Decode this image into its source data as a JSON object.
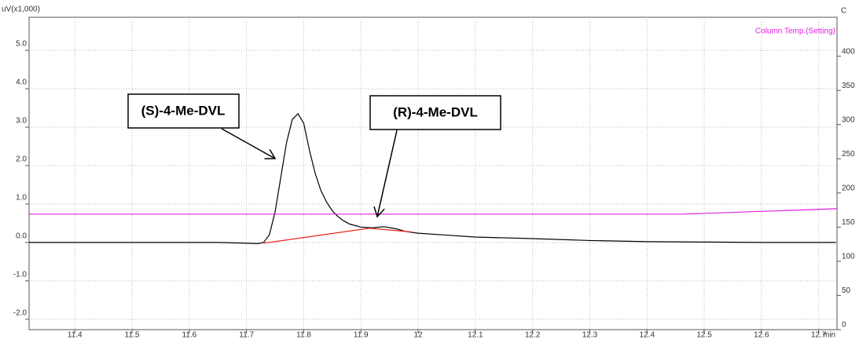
{
  "chart_data": {
    "type": "line",
    "y_label": "uV(x1,000)",
    "y2_label": "C",
    "x_label": "min",
    "annotations": [
      "(S)-4-Me-DVL",
      "(R)-4-Me-DVL"
    ],
    "xlim": [
      11.32,
      12.732
    ],
    "xticks": [
      11.4,
      11.5,
      11.6,
      11.7,
      11.8,
      11.9,
      12.0,
      12.1,
      12.2,
      12.3,
      12.4,
      12.5,
      12.6,
      12.7
    ],
    "ylim": [
      -2.27,
      5.86
    ],
    "yticks": [
      {
        "value": -2,
        "label": "-2.0"
      },
      {
        "value": -1,
        "label": "-1.0"
      },
      {
        "value": 0,
        "label": "0.0"
      },
      {
        "value": 1,
        "label": "1.0"
      },
      {
        "value": 2,
        "label": "2.0"
      },
      {
        "value": 3,
        "label": "3.0"
      },
      {
        "value": 4,
        "label": "4.0"
      },
      {
        "value": 5,
        "label": "5.0"
      }
    ],
    "y2lim": [
      0,
      457
    ],
    "y2ticks": [
      0,
      50,
      100,
      150,
      200,
      250,
      300,
      350,
      400
    ],
    "grid": true,
    "legend": "top-right",
    "series": [
      {
        "color": "#000000",
        "x": [
          11.32,
          11.4,
          11.5,
          11.6,
          11.65,
          11.7,
          11.72,
          11.73,
          11.74,
          11.75,
          11.76,
          11.77,
          11.78,
          11.79,
          11.8,
          11.81,
          11.82,
          11.83,
          11.84,
          11.85,
          11.86,
          11.87,
          11.88,
          11.9,
          11.92,
          11.94,
          11.96,
          11.98,
          12.0,
          12.05,
          12.1,
          12.2,
          12.3,
          12.4,
          12.5,
          12.6,
          12.73
        ],
        "values": [
          0,
          0,
          0,
          0,
          0,
          -0.02,
          -0.03,
          0.0,
          0.2,
          0.8,
          1.7,
          2.6,
          3.2,
          3.35,
          3.1,
          2.4,
          1.8,
          1.35,
          1.05,
          0.82,
          0.67,
          0.56,
          0.48,
          0.4,
          0.38,
          0.41,
          0.36,
          0.28,
          0.24,
          0.19,
          0.14,
          0.1,
          0.05,
          0.02,
          0.01,
          0,
          0
        ]
      },
      {
        "color": "#e8261c",
        "x": [
          11.73,
          11.915,
          11.99
        ],
        "values": [
          -0.02,
          0.37,
          0.27
        ]
      },
      {
        "name": "Column Temp.(Setting)",
        "color": "#e020e0",
        "axis": "y2",
        "x": [
          11.32,
          12.46,
          12.6,
          12.732
        ],
        "values": [
          169,
          169,
          173,
          177
        ]
      }
    ]
  }
}
